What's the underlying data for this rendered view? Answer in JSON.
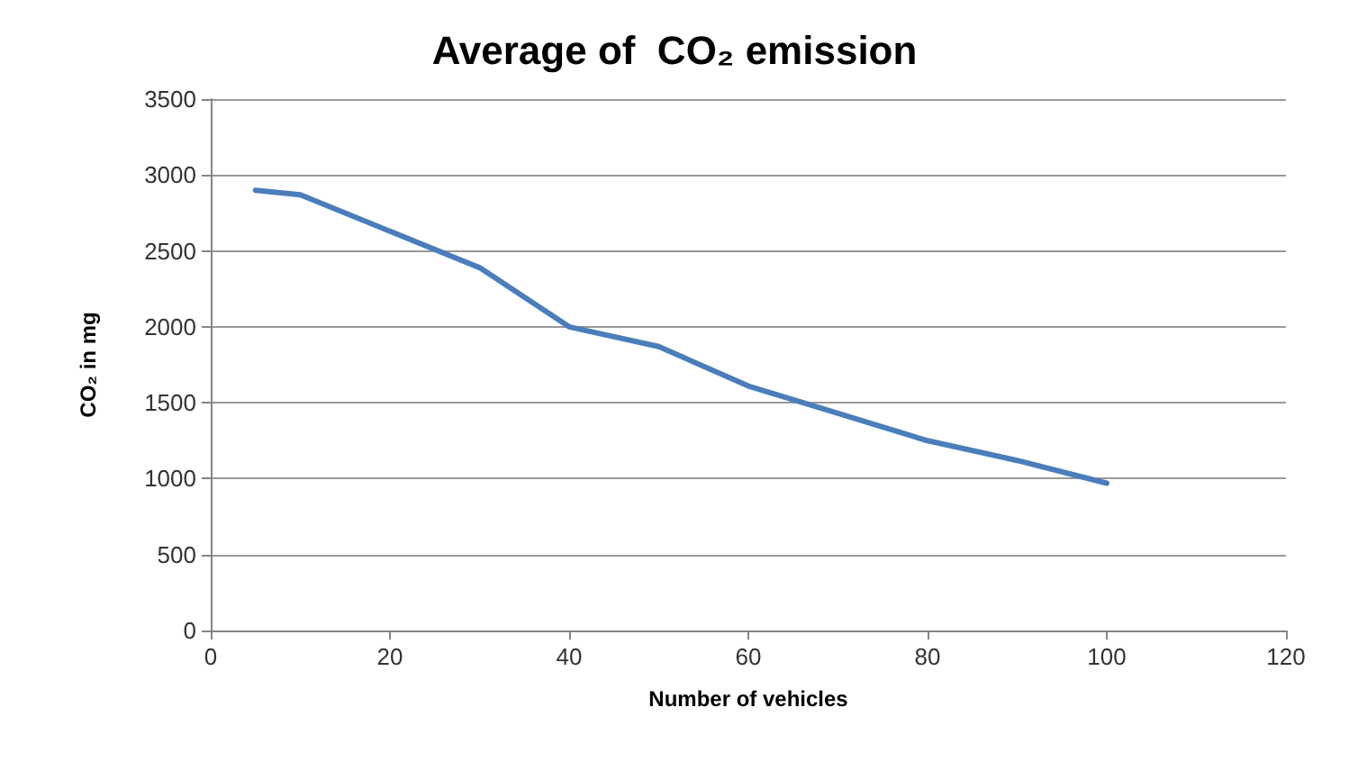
{
  "chart_data": {
    "type": "line",
    "title": "Average of  CO₂ emission",
    "xlabel": "Number of vehicles",
    "ylabel": "CO₂ in mg",
    "series": [
      {
        "color": "#4a7ebb",
        "x": [
          5,
          10,
          20,
          30,
          40,
          50,
          60,
          70,
          80,
          90,
          100
        ],
        "values": [
          2900,
          2870,
          2630,
          2390,
          2000,
          1870,
          1610,
          1430,
          1250,
          1120,
          970
        ]
      }
    ],
    "xlim": [
      0,
      120
    ],
    "xticks": [
      0,
      20,
      40,
      60,
      80,
      100,
      120
    ],
    "ylim": [
      0,
      3500
    ],
    "yticks": [
      0,
      500,
      1000,
      1500,
      2000,
      2500,
      3000,
      3500
    ],
    "grid": "y",
    "marker": "none",
    "line_style": "solid"
  }
}
